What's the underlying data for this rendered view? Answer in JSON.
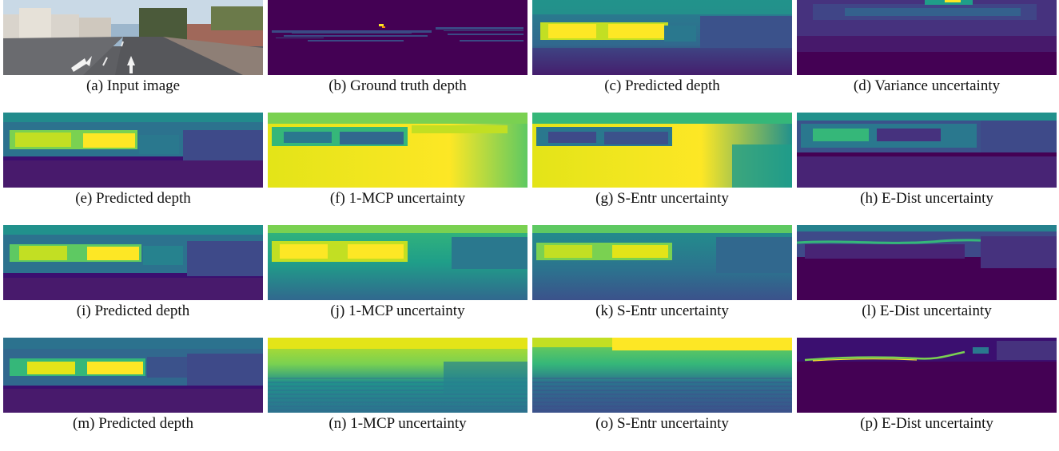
{
  "figure": {
    "panels": [
      {
        "id": "a",
        "caption": "(a) Input image",
        "kind": "photo"
      },
      {
        "id": "b",
        "caption": "(b) Ground truth depth",
        "kind": "sparse"
      },
      {
        "id": "c",
        "caption": "(c) Predicted depth",
        "kind": "depth"
      },
      {
        "id": "d",
        "caption": "(d) Variance uncertainty",
        "kind": "variance"
      },
      {
        "id": "e",
        "caption": "(e) Predicted depth",
        "kind": "depth"
      },
      {
        "id": "f",
        "caption": "(f) 1-MCP uncertainty",
        "kind": "bright"
      },
      {
        "id": "g",
        "caption": "(g) S-Entr uncertainty",
        "kind": "bright"
      },
      {
        "id": "h",
        "caption": "(h) E-Dist uncertainty",
        "kind": "edist"
      },
      {
        "id": "i",
        "caption": "(i) Predicted depth",
        "kind": "depth"
      },
      {
        "id": "j",
        "caption": "(j) 1-MCP uncertainty",
        "kind": "mid"
      },
      {
        "id": "k",
        "caption": "(k) S-Entr uncertainty",
        "kind": "mid"
      },
      {
        "id": "l",
        "caption": "(l) E-Dist uncertainty",
        "kind": "edist"
      },
      {
        "id": "m",
        "caption": "(m) Predicted depth",
        "kind": "depth"
      },
      {
        "id": "n",
        "caption": "(n) 1-MCP uncertainty",
        "kind": "striped"
      },
      {
        "id": "o",
        "caption": "(o) S-Entr uncertainty",
        "kind": "striped"
      },
      {
        "id": "p",
        "caption": "(p) E-Dist uncertainty",
        "kind": "edist-line"
      }
    ],
    "colors": {
      "viridis_dark": "#440154",
      "viridis_deep": "#3b0f70",
      "viridis_blue": "#31688e",
      "viridis_teal": "#21918c",
      "viridis_green": "#5ec962",
      "viridis_yellow": "#fde725"
    }
  }
}
